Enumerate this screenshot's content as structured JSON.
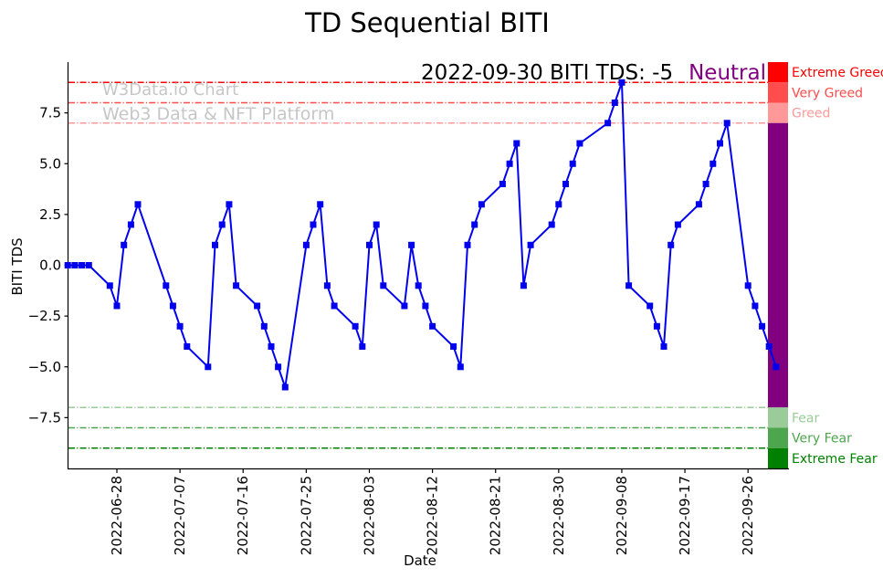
{
  "title": "TD Sequential BITI",
  "annotation": {
    "text": "2022-09-30 BITI TDS: -5",
    "sentiment": "Neutral"
  },
  "watermark": {
    "line1": "W3Data.io Chart",
    "line2": "Web3 Data & NFT Platform"
  },
  "colors": {
    "line": "#0000EE",
    "sentiment": "#800080",
    "watermark": "#C6C6C6",
    "axis": "#000000"
  },
  "chart_data": {
    "type": "line",
    "title": "TD Sequential BITI",
    "xlabel": "Date",
    "ylabel": "BITI TDS",
    "ylim": [
      -10,
      10
    ],
    "yticks": [
      -7.5,
      -5.0,
      -2.5,
      0.0,
      2.5,
      5.0,
      7.5
    ],
    "xticks": [
      "2022-06-28",
      "2022-07-07",
      "2022-07-16",
      "2022-07-25",
      "2022-08-03",
      "2022-08-12",
      "2022-08-21",
      "2022-08-30",
      "2022-09-08",
      "2022-09-17",
      "2022-09-26"
    ],
    "grid": false,
    "marker": "square",
    "legend_position": "right-of-plot",
    "series": [
      {
        "name": "BITI TDS",
        "color": "#0000EE",
        "points": [
          [
            "2022-06-21",
            0
          ],
          [
            "2022-06-22",
            0
          ],
          [
            "2022-06-23",
            0
          ],
          [
            "2022-06-24",
            0
          ],
          [
            "2022-06-27",
            -1
          ],
          [
            "2022-06-28",
            -2
          ],
          [
            "2022-06-29",
            1
          ],
          [
            "2022-06-30",
            2
          ],
          [
            "2022-07-01",
            3
          ],
          [
            "2022-07-05",
            -1
          ],
          [
            "2022-07-06",
            -2
          ],
          [
            "2022-07-07",
            -3
          ],
          [
            "2022-07-08",
            -4
          ],
          [
            "2022-07-11",
            -5
          ],
          [
            "2022-07-12",
            1
          ],
          [
            "2022-07-13",
            2
          ],
          [
            "2022-07-14",
            3
          ],
          [
            "2022-07-15",
            -1
          ],
          [
            "2022-07-18",
            -2
          ],
          [
            "2022-07-19",
            -3
          ],
          [
            "2022-07-20",
            -4
          ],
          [
            "2022-07-21",
            -5
          ],
          [
            "2022-07-22",
            -6
          ],
          [
            "2022-07-25",
            1
          ],
          [
            "2022-07-26",
            2
          ],
          [
            "2022-07-27",
            3
          ],
          [
            "2022-07-28",
            -1
          ],
          [
            "2022-07-29",
            -2
          ],
          [
            "2022-08-01",
            -3
          ],
          [
            "2022-08-02",
            -4
          ],
          [
            "2022-08-03",
            1
          ],
          [
            "2022-08-04",
            2
          ],
          [
            "2022-08-05",
            -1
          ],
          [
            "2022-08-08",
            -2
          ],
          [
            "2022-08-09",
            1
          ],
          [
            "2022-08-10",
            -1
          ],
          [
            "2022-08-11",
            -2
          ],
          [
            "2022-08-12",
            -3
          ],
          [
            "2022-08-15",
            -4
          ],
          [
            "2022-08-16",
            -5
          ],
          [
            "2022-08-17",
            1
          ],
          [
            "2022-08-18",
            2
          ],
          [
            "2022-08-19",
            3
          ],
          [
            "2022-08-22",
            4
          ],
          [
            "2022-08-23",
            5
          ],
          [
            "2022-08-24",
            6
          ],
          [
            "2022-08-25",
            -1
          ],
          [
            "2022-08-26",
            1
          ],
          [
            "2022-08-29",
            2
          ],
          [
            "2022-08-30",
            3
          ],
          [
            "2022-08-31",
            4
          ],
          [
            "2022-09-01",
            5
          ],
          [
            "2022-09-02",
            6
          ],
          [
            "2022-09-06",
            7
          ],
          [
            "2022-09-07",
            8
          ],
          [
            "2022-09-08",
            9
          ],
          [
            "2022-09-09",
            -1
          ],
          [
            "2022-09-12",
            -2
          ],
          [
            "2022-09-13",
            -3
          ],
          [
            "2022-09-14",
            -4
          ],
          [
            "2022-09-15",
            1
          ],
          [
            "2022-09-16",
            2
          ],
          [
            "2022-09-19",
            3
          ],
          [
            "2022-09-20",
            4
          ],
          [
            "2022-09-21",
            5
          ],
          [
            "2022-09-22",
            6
          ],
          [
            "2022-09-23",
            7
          ],
          [
            "2022-09-26",
            -1
          ],
          [
            "2022-09-27",
            -2
          ],
          [
            "2022-09-28",
            -3
          ],
          [
            "2022-09-29",
            -4
          ],
          [
            "2022-09-30",
            -5
          ]
        ]
      }
    ],
    "thresholds": [
      {
        "label": "Extreme Greed",
        "value": 9,
        "color": "#FF0000"
      },
      {
        "label": "Very Greed",
        "value": 8,
        "color": "#FF4C4C"
      },
      {
        "label": "Greed",
        "value": 7,
        "color": "#FF9999"
      },
      {
        "label": "Fear",
        "value": -7,
        "color": "#99CC99"
      },
      {
        "label": "Very Fear",
        "value": -8,
        "color": "#4DA64D"
      },
      {
        "label": "Extreme Fear",
        "value": -9,
        "color": "#008000"
      }
    ],
    "colorbar": {
      "bands": [
        {
          "from": 10,
          "to": 9,
          "color": "#FF0000",
          "label": "Extreme Greed"
        },
        {
          "from": 9,
          "to": 8,
          "color": "#FF4C4C",
          "label": "Very Greed"
        },
        {
          "from": 8,
          "to": 7,
          "color": "#FF9999",
          "label": "Greed"
        },
        {
          "from": 7,
          "to": -7,
          "color": "#800080",
          "label": ""
        },
        {
          "from": -7,
          "to": -8,
          "color": "#99CC99",
          "label": "Fear"
        },
        {
          "from": -8,
          "to": -9,
          "color": "#4DA64D",
          "label": "Very Fear"
        },
        {
          "from": -9,
          "to": -10,
          "color": "#008000",
          "label": "Extreme Fear"
        }
      ]
    }
  }
}
